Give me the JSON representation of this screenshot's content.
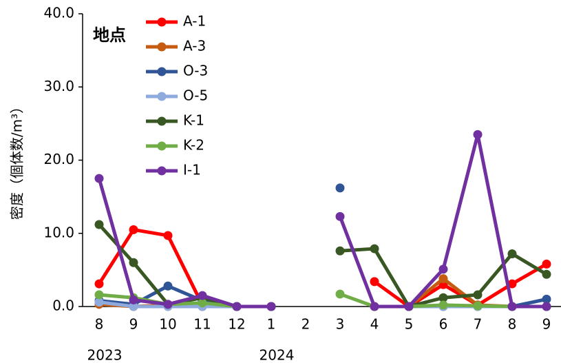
{
  "chart_data": {
    "type": "line",
    "y_label": "密度（個体数/m³）",
    "legend_title": "地点",
    "categories": [
      "8",
      "9",
      "10",
      "11",
      "12",
      "1",
      "2",
      "3",
      "4",
      "5",
      "6",
      "7",
      "8",
      "9"
    ],
    "year_labels": [
      "2023",
      "2024"
    ],
    "ylim": [
      0,
      40
    ],
    "yticks": [
      {
        "value": 0,
        "label": "0.0"
      },
      {
        "value": 10,
        "label": "10.0"
      },
      {
        "value": 20,
        "label": "20.0"
      },
      {
        "value": 30,
        "label": "30.0"
      },
      {
        "value": 40,
        "label": "40.0"
      }
    ],
    "series": [
      {
        "name": "A-1",
        "color": "#ff0000",
        "values": [
          3.1,
          10.5,
          9.7,
          0.2,
          0,
          0,
          null,
          null,
          3.4,
          0,
          3.0,
          0.2,
          3.1,
          5.8
        ]
      },
      {
        "name": "A-3",
        "color": "#c55a11",
        "values": [
          0.3,
          0,
          0.2,
          0,
          0,
          0,
          null,
          null,
          0,
          0,
          3.8,
          0.2,
          0,
          0
        ]
      },
      {
        "name": "O-3",
        "color": "#2f5597",
        "values": [
          0.8,
          0.3,
          2.8,
          0.8,
          0,
          0,
          null,
          16.2,
          null,
          0,
          0,
          0,
          0,
          1.0
        ]
      },
      {
        "name": "O-5",
        "color": "#8faadc",
        "values": [
          0.6,
          0,
          0,
          0,
          0,
          0,
          null,
          null,
          0,
          0,
          0,
          0,
          0,
          0
        ]
      },
      {
        "name": "K-1",
        "color": "#385723",
        "values": [
          11.2,
          6.0,
          0.3,
          1.2,
          0,
          0,
          null,
          7.6,
          7.9,
          0,
          1.2,
          1.6,
          7.2,
          4.4
        ]
      },
      {
        "name": "K-2",
        "color": "#70ad47",
        "values": [
          1.6,
          1.2,
          0.3,
          0.5,
          0,
          0,
          null,
          1.7,
          0,
          0,
          0.2,
          0.1,
          0,
          0
        ]
      },
      {
        "name": "I-1",
        "color": "#7030a0",
        "values": [
          17.5,
          0.9,
          0.3,
          1.5,
          0,
          0,
          null,
          12.3,
          0,
          0,
          5.1,
          23.5,
          0,
          0
        ]
      }
    ]
  }
}
